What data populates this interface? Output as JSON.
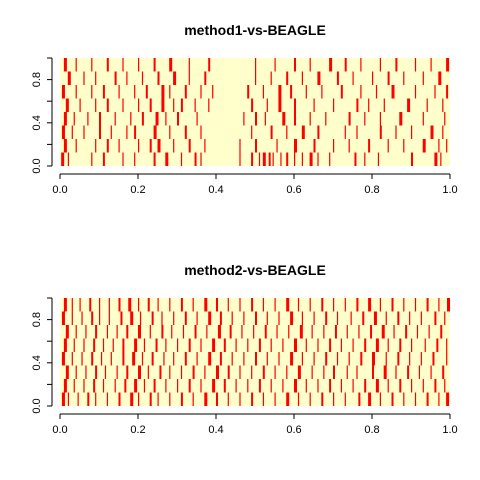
{
  "colors": {
    "background": "#ffffcc",
    "mark": "#ff0000",
    "axis": "#000000"
  },
  "chart_data": [
    {
      "type": "heatmap",
      "title": "method1-vs-BEAGLE",
      "xlabel": "",
      "ylabel": "",
      "xlim": [
        0,
        1
      ],
      "ylim": [
        0,
        1
      ],
      "x_ticks": [
        "0.0",
        "0.2",
        "0.4",
        "0.6",
        "0.8",
        "1.0"
      ],
      "y_ticks": [
        "0.0",
        "0.4",
        "0.8"
      ],
      "rows": 8,
      "grid": false,
      "values_description_legend": "",
      "marks": [
        {
          "row": 0,
          "x": [
            0.003,
            0.02,
            0.08,
            0.11,
            0.16,
            0.19,
            0.24,
            0.27,
            0.31,
            0.345,
            0.36,
            0.46,
            0.49,
            0.51,
            0.52,
            0.535,
            0.545,
            0.565,
            0.58,
            0.6,
            0.62,
            0.64,
            0.66,
            0.69,
            0.755,
            0.78,
            0.815,
            0.9,
            0.96,
            0.975
          ]
        },
        {
          "row": 1,
          "x": [
            0.01,
            0.04,
            0.09,
            0.12,
            0.15,
            0.2,
            0.23,
            0.25,
            0.29,
            0.33,
            0.37,
            0.46,
            0.5,
            0.555,
            0.6,
            0.65,
            0.7,
            0.74,
            0.79,
            0.84,
            0.88,
            0.93,
            0.97,
            0.99
          ]
        },
        {
          "row": 2,
          "x": [
            0.005,
            0.03,
            0.06,
            0.1,
            0.13,
            0.17,
            0.19,
            0.24,
            0.28,
            0.32,
            0.36,
            0.49,
            0.54,
            0.58,
            0.62,
            0.66,
            0.73,
            0.76,
            0.82,
            0.86,
            0.9,
            0.95,
            0.98
          ]
        },
        {
          "row": 3,
          "x": [
            0.01,
            0.035,
            0.07,
            0.1,
            0.14,
            0.18,
            0.21,
            0.245,
            0.27,
            0.3,
            0.35,
            0.47,
            0.5,
            0.525,
            0.57,
            0.6,
            0.64,
            0.68,
            0.74,
            0.78,
            0.82,
            0.87,
            0.93,
            0.985
          ]
        },
        {
          "row": 4,
          "x": [
            0.015,
            0.05,
            0.09,
            0.12,
            0.16,
            0.2,
            0.23,
            0.26,
            0.29,
            0.31,
            0.345,
            0.38,
            0.49,
            0.53,
            0.56,
            0.6,
            0.65,
            0.7,
            0.76,
            0.79,
            0.83,
            0.89,
            0.94,
            0.98
          ]
        },
        {
          "row": 5,
          "x": [
            0.005,
            0.04,
            0.08,
            0.11,
            0.15,
            0.19,
            0.22,
            0.26,
            0.28,
            0.32,
            0.36,
            0.39,
            0.48,
            0.52,
            0.56,
            0.59,
            0.63,
            0.67,
            0.72,
            0.77,
            0.81,
            0.85,
            0.91,
            0.96,
            0.99
          ]
        },
        {
          "row": 6,
          "x": [
            0.02,
            0.06,
            0.09,
            0.14,
            0.17,
            0.21,
            0.25,
            0.29,
            0.33,
            0.37,
            0.5,
            0.54,
            0.58,
            0.62,
            0.66,
            0.71,
            0.75,
            0.8,
            0.84,
            0.88,
            0.93,
            0.97
          ]
        },
        {
          "row": 7,
          "x": [
            0.01,
            0.04,
            0.08,
            0.12,
            0.16,
            0.2,
            0.24,
            0.28,
            0.33,
            0.38,
            0.5,
            0.55,
            0.6,
            0.64,
            0.69,
            0.73,
            0.77,
            0.82,
            0.86,
            0.91,
            0.95,
            0.99
          ]
        }
      ]
    },
    {
      "type": "heatmap",
      "title": "method2-vs-BEAGLE",
      "xlabel": "",
      "ylabel": "",
      "xlim": [
        0,
        1
      ],
      "ylim": [
        0,
        1
      ],
      "x_ticks": [
        "0.0",
        "0.2",
        "0.4",
        "0.6",
        "0.8",
        "1.0"
      ],
      "y_ticks": [
        "0.0",
        "0.4",
        "0.8"
      ],
      "rows": 8,
      "grid": false,
      "marks": [
        {
          "row": 0,
          "x": [
            0.005,
            0.02,
            0.045,
            0.07,
            0.09,
            0.12,
            0.15,
            0.18,
            0.2,
            0.23,
            0.25,
            0.28,
            0.31,
            0.34,
            0.37,
            0.4,
            0.43,
            0.46,
            0.49,
            0.52,
            0.55,
            0.58,
            0.61,
            0.64,
            0.67,
            0.7,
            0.73,
            0.765,
            0.79,
            0.82,
            0.85,
            0.88,
            0.91,
            0.94,
            0.97,
            0.99
          ]
        },
        {
          "row": 1,
          "x": [
            0.01,
            0.035,
            0.06,
            0.085,
            0.11,
            0.14,
            0.165,
            0.19,
            0.215,
            0.24,
            0.27,
            0.3,
            0.33,
            0.36,
            0.39,
            0.42,
            0.45,
            0.48,
            0.51,
            0.54,
            0.57,
            0.6,
            0.63,
            0.66,
            0.69,
            0.72,
            0.75,
            0.78,
            0.81,
            0.84,
            0.87,
            0.9,
            0.93,
            0.96,
            0.985
          ]
        },
        {
          "row": 2,
          "x": [
            0.015,
            0.04,
            0.065,
            0.09,
            0.115,
            0.145,
            0.17,
            0.2,
            0.225,
            0.255,
            0.28,
            0.31,
            0.34,
            0.37,
            0.4,
            0.43,
            0.46,
            0.49,
            0.52,
            0.55,
            0.58,
            0.61,
            0.645,
            0.675,
            0.7,
            0.735,
            0.76,
            0.8,
            0.83,
            0.86,
            0.89,
            0.92,
            0.95,
            0.98
          ]
        },
        {
          "row": 3,
          "x": [
            0.005,
            0.03,
            0.055,
            0.08,
            0.105,
            0.13,
            0.16,
            0.185,
            0.21,
            0.235,
            0.265,
            0.29,
            0.32,
            0.35,
            0.38,
            0.41,
            0.44,
            0.47,
            0.5,
            0.53,
            0.56,
            0.59,
            0.62,
            0.65,
            0.68,
            0.71,
            0.74,
            0.77,
            0.8,
            0.835,
            0.865,
            0.895,
            0.925,
            0.955,
            0.99
          ]
        },
        {
          "row": 4,
          "x": [
            0.01,
            0.035,
            0.06,
            0.085,
            0.11,
            0.135,
            0.16,
            0.19,
            0.215,
            0.245,
            0.27,
            0.3,
            0.33,
            0.36,
            0.39,
            0.42,
            0.45,
            0.48,
            0.51,
            0.54,
            0.57,
            0.6,
            0.63,
            0.66,
            0.69,
            0.72,
            0.75,
            0.78,
            0.81,
            0.84,
            0.87,
            0.9,
            0.935,
            0.965,
            0.99
          ]
        },
        {
          "row": 5,
          "x": [
            0.015,
            0.04,
            0.065,
            0.09,
            0.12,
            0.145,
            0.17,
            0.2,
            0.23,
            0.26,
            0.285,
            0.315,
            0.345,
            0.375,
            0.405,
            0.435,
            0.465,
            0.495,
            0.525,
            0.555,
            0.585,
            0.615,
            0.645,
            0.675,
            0.705,
            0.735,
            0.765,
            0.795,
            0.825,
            0.855,
            0.885,
            0.915,
            0.945,
            0.975
          ]
        },
        {
          "row": 6,
          "x": [
            0.005,
            0.03,
            0.055,
            0.08,
            0.1,
            0.125,
            0.155,
            0.18,
            0.205,
            0.235,
            0.26,
            0.29,
            0.32,
            0.35,
            0.38,
            0.41,
            0.44,
            0.47,
            0.5,
            0.53,
            0.56,
            0.59,
            0.62,
            0.65,
            0.68,
            0.71,
            0.745,
            0.775,
            0.805,
            0.835,
            0.865,
            0.895,
            0.925,
            0.96,
            0.985
          ]
        },
        {
          "row": 7,
          "x": [
            0.01,
            0.03,
            0.05,
            0.075,
            0.1,
            0.125,
            0.15,
            0.175,
            0.2,
            0.225,
            0.25,
            0.28,
            0.31,
            0.34,
            0.37,
            0.4,
            0.43,
            0.46,
            0.49,
            0.52,
            0.55,
            0.58,
            0.61,
            0.64,
            0.67,
            0.7,
            0.73,
            0.76,
            0.79,
            0.82,
            0.85,
            0.88,
            0.91,
            0.94,
            0.97,
            0.995
          ]
        }
      ]
    }
  ]
}
